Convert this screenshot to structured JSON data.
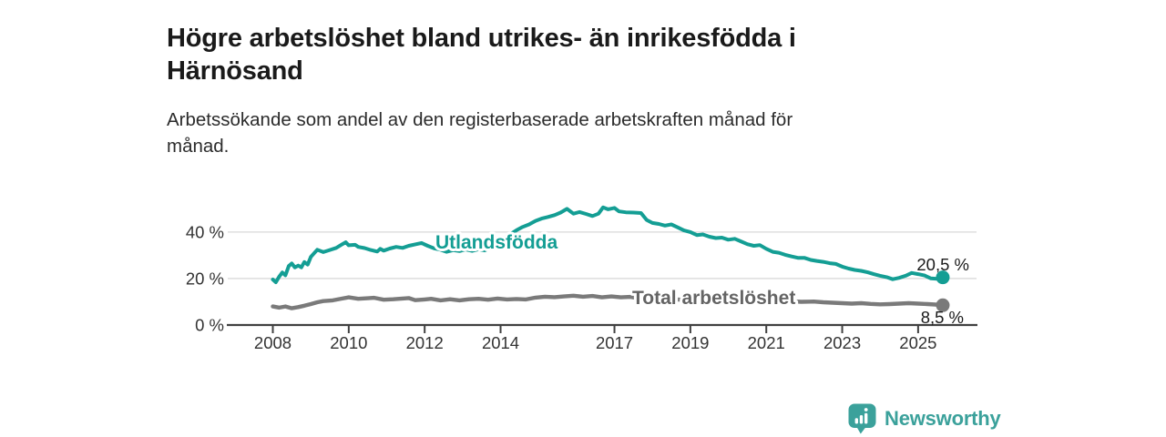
{
  "title_lines": [
    "Högre arbetslöshet bland utrikes- än inrikesfödda i",
    "Härnösand"
  ],
  "subtitle_lines": [
    "Arbetssökande som andel av den registerbaserade arbetskraften månad för",
    "månad."
  ],
  "colors": {
    "title": "#1a1a1a",
    "subtitle": "#2b2b2b",
    "axis": "#404040",
    "tick_label": "#333333",
    "gridline": "#d9d9d9",
    "series_foreign": "#149e94",
    "series_total": "#7a7a7a",
    "series_total_label": "#646464",
    "end_label": "#1a1a1a",
    "logo": "#3ba19b",
    "background": "#ffffff"
  },
  "logo": {
    "text": "Newsworthy",
    "icon": "bar-chart-speech-bubble-icon"
  },
  "chart_data": {
    "type": "line",
    "title": "Högre arbetslöshet bland utrikes- än inrikesfödda i Härnösand",
    "subtitle": "Arbetssökande som andel av den registerbaserade arbetskraften månad för månad.",
    "xlabel": "",
    "ylabel": "",
    "xlim": [
      2008,
      2025.9
    ],
    "ylim": [
      0,
      55
    ],
    "grid": "horizontal",
    "legend_position": "inline-labels",
    "x_ticks": [
      {
        "value": 2008,
        "label": "2008"
      },
      {
        "value": 2010,
        "label": "2010"
      },
      {
        "value": 2012,
        "label": "2012"
      },
      {
        "value": 2014,
        "label": "2014"
      },
      {
        "value": 2017,
        "label": "2017"
      },
      {
        "value": 2019,
        "label": "2019"
      },
      {
        "value": 2021,
        "label": "2021"
      },
      {
        "value": 2023,
        "label": "2023"
      },
      {
        "value": 2025,
        "label": "2025"
      }
    ],
    "y_ticks": [
      {
        "value": 0,
        "label": "0 %"
      },
      {
        "value": 20,
        "label": "20 %"
      },
      {
        "value": 40,
        "label": "40 %"
      }
    ],
    "series": [
      {
        "name": "Utlandsfödda",
        "color": "#149e94",
        "end_value": 20.5,
        "end_label": "20,5 %",
        "points": [
          [
            2008.0,
            19.6
          ],
          [
            2008.08,
            18.4
          ],
          [
            2008.17,
            20.9
          ],
          [
            2008.25,
            22.6
          ],
          [
            2008.33,
            21.4
          ],
          [
            2008.42,
            25.4
          ],
          [
            2008.5,
            26.5
          ],
          [
            2008.58,
            24.8
          ],
          [
            2008.67,
            25.6
          ],
          [
            2008.75,
            24.8
          ],
          [
            2008.83,
            27.1
          ],
          [
            2008.92,
            26.0
          ],
          [
            2009.0,
            29.3
          ],
          [
            2009.17,
            32.4
          ],
          [
            2009.33,
            31.4
          ],
          [
            2009.5,
            32.3
          ],
          [
            2009.67,
            33.2
          ],
          [
            2009.83,
            34.8
          ],
          [
            2009.92,
            35.6
          ],
          [
            2010.0,
            34.3
          ],
          [
            2010.17,
            34.5
          ],
          [
            2010.25,
            33.6
          ],
          [
            2010.42,
            33.1
          ],
          [
            2010.58,
            32.3
          ],
          [
            2010.75,
            31.6
          ],
          [
            2010.83,
            32.8
          ],
          [
            2010.92,
            32.0
          ],
          [
            2011.08,
            32.9
          ],
          [
            2011.25,
            33.6
          ],
          [
            2011.42,
            33.2
          ],
          [
            2011.58,
            34.1
          ],
          [
            2011.75,
            34.7
          ],
          [
            2011.92,
            35.3
          ],
          [
            2012.08,
            34.1
          ],
          [
            2012.25,
            33.0
          ],
          [
            2012.42,
            32.4
          ],
          [
            2012.58,
            31.5
          ],
          [
            2012.75,
            32.2
          ],
          [
            2012.92,
            31.8
          ],
          [
            2013.08,
            32.5
          ],
          [
            2013.25,
            31.9
          ],
          [
            2013.42,
            32.6
          ],
          [
            2013.58,
            32.1
          ],
          [
            2013.75,
            33.4
          ],
          [
            2013.92,
            35.3
          ],
          [
            2014.08,
            37.2
          ],
          [
            2014.25,
            39.0
          ],
          [
            2014.42,
            40.8
          ],
          [
            2014.58,
            42.2
          ],
          [
            2014.75,
            43.3
          ],
          [
            2014.92,
            44.8
          ],
          [
            2015.08,
            45.8
          ],
          [
            2015.25,
            46.5
          ],
          [
            2015.42,
            47.3
          ],
          [
            2015.58,
            48.4
          ],
          [
            2015.75,
            50.0
          ],
          [
            2015.92,
            47.9
          ],
          [
            2016.08,
            48.6
          ],
          [
            2016.25,
            47.8
          ],
          [
            2016.42,
            46.9
          ],
          [
            2016.58,
            47.9
          ],
          [
            2016.7,
            50.6
          ],
          [
            2016.83,
            49.8
          ],
          [
            2017.0,
            50.4
          ],
          [
            2017.12,
            48.9
          ],
          [
            2017.3,
            48.5
          ],
          [
            2017.5,
            48.4
          ],
          [
            2017.7,
            48.2
          ],
          [
            2017.85,
            45.2
          ],
          [
            2018.0,
            43.9
          ],
          [
            2018.17,
            43.5
          ],
          [
            2018.33,
            42.8
          ],
          [
            2018.5,
            43.3
          ],
          [
            2018.67,
            42.0
          ],
          [
            2018.83,
            40.7
          ],
          [
            2019.0,
            40.0
          ],
          [
            2019.17,
            38.7
          ],
          [
            2019.33,
            39.0
          ],
          [
            2019.5,
            38.0
          ],
          [
            2019.67,
            37.4
          ],
          [
            2019.83,
            37.6
          ],
          [
            2020.0,
            36.7
          ],
          [
            2020.17,
            37.1
          ],
          [
            2020.33,
            36.0
          ],
          [
            2020.5,
            34.8
          ],
          [
            2020.67,
            34.1
          ],
          [
            2020.83,
            34.4
          ],
          [
            2021.0,
            32.8
          ],
          [
            2021.17,
            31.5
          ],
          [
            2021.33,
            31.1
          ],
          [
            2021.5,
            30.2
          ],
          [
            2021.67,
            29.5
          ],
          [
            2021.83,
            28.9
          ],
          [
            2022.0,
            28.9
          ],
          [
            2022.17,
            28.0
          ],
          [
            2022.33,
            27.6
          ],
          [
            2022.5,
            27.2
          ],
          [
            2022.67,
            26.6
          ],
          [
            2022.83,
            26.3
          ],
          [
            2023.0,
            25.1
          ],
          [
            2023.17,
            24.3
          ],
          [
            2023.33,
            23.7
          ],
          [
            2023.5,
            23.3
          ],
          [
            2023.67,
            22.7
          ],
          [
            2023.83,
            21.9
          ],
          [
            2024.0,
            21.2
          ],
          [
            2024.17,
            20.6
          ],
          [
            2024.33,
            19.7
          ],
          [
            2024.5,
            20.3
          ],
          [
            2024.67,
            21.2
          ],
          [
            2024.83,
            22.4
          ],
          [
            2025.0,
            21.9
          ],
          [
            2025.17,
            21.3
          ],
          [
            2025.33,
            20.1
          ],
          [
            2025.5,
            19.9
          ],
          [
            2025.65,
            20.5
          ]
        ]
      },
      {
        "name": "Total arbetslöshet",
        "color": "#7a7a7a",
        "end_value": 8.5,
        "end_label": "8,5 %",
        "points": [
          [
            2008.0,
            8.0
          ],
          [
            2008.17,
            7.5
          ],
          [
            2008.33,
            8.0
          ],
          [
            2008.5,
            7.2
          ],
          [
            2008.67,
            7.7
          ],
          [
            2008.83,
            8.3
          ],
          [
            2009.0,
            9.0
          ],
          [
            2009.17,
            9.8
          ],
          [
            2009.33,
            10.3
          ],
          [
            2009.58,
            10.6
          ],
          [
            2009.83,
            11.4
          ],
          [
            2010.0,
            11.9
          ],
          [
            2010.25,
            11.3
          ],
          [
            2010.5,
            11.5
          ],
          [
            2010.67,
            11.7
          ],
          [
            2010.92,
            10.9
          ],
          [
            2011.17,
            11.1
          ],
          [
            2011.33,
            11.3
          ],
          [
            2011.58,
            11.6
          ],
          [
            2011.75,
            10.7
          ],
          [
            2012.0,
            11.0
          ],
          [
            2012.17,
            11.3
          ],
          [
            2012.42,
            10.6
          ],
          [
            2012.67,
            11.1
          ],
          [
            2012.92,
            10.6
          ],
          [
            2013.17,
            11.1
          ],
          [
            2013.42,
            11.3
          ],
          [
            2013.67,
            10.9
          ],
          [
            2013.92,
            11.4
          ],
          [
            2014.17,
            11.0
          ],
          [
            2014.42,
            11.2
          ],
          [
            2014.67,
            11.0
          ],
          [
            2014.92,
            11.8
          ],
          [
            2015.17,
            12.2
          ],
          [
            2015.42,
            12.0
          ],
          [
            2015.67,
            12.3
          ],
          [
            2015.92,
            12.6
          ],
          [
            2016.17,
            12.2
          ],
          [
            2016.42,
            12.5
          ],
          [
            2016.67,
            11.9
          ],
          [
            2016.92,
            12.3
          ],
          [
            2017.17,
            11.9
          ],
          [
            2017.42,
            12.1
          ],
          [
            2017.67,
            11.4
          ],
          [
            2017.92,
            11.1
          ],
          [
            2018.17,
            11.3
          ],
          [
            2018.42,
            10.9
          ],
          [
            2018.67,
            11.0
          ],
          [
            2018.92,
            10.6
          ],
          [
            2019.25,
            10.5
          ],
          [
            2019.58,
            10.7
          ],
          [
            2019.92,
            10.3
          ],
          [
            2020.25,
            10.5
          ],
          [
            2020.58,
            10.2
          ],
          [
            2020.92,
            10.4
          ],
          [
            2021.25,
            10.1
          ],
          [
            2021.58,
            10.3
          ],
          [
            2021.92,
            10.0
          ],
          [
            2022.25,
            10.1
          ],
          [
            2022.5,
            9.8
          ],
          [
            2022.75,
            9.6
          ],
          [
            2023.0,
            9.4
          ],
          [
            2023.25,
            9.2
          ],
          [
            2023.5,
            9.4
          ],
          [
            2023.75,
            9.1
          ],
          [
            2024.0,
            8.9
          ],
          [
            2024.25,
            9.0
          ],
          [
            2024.5,
            9.2
          ],
          [
            2024.75,
            9.4
          ],
          [
            2025.0,
            9.2
          ],
          [
            2025.25,
            9.0
          ],
          [
            2025.45,
            8.8
          ],
          [
            2025.65,
            8.5
          ]
        ]
      }
    ]
  }
}
